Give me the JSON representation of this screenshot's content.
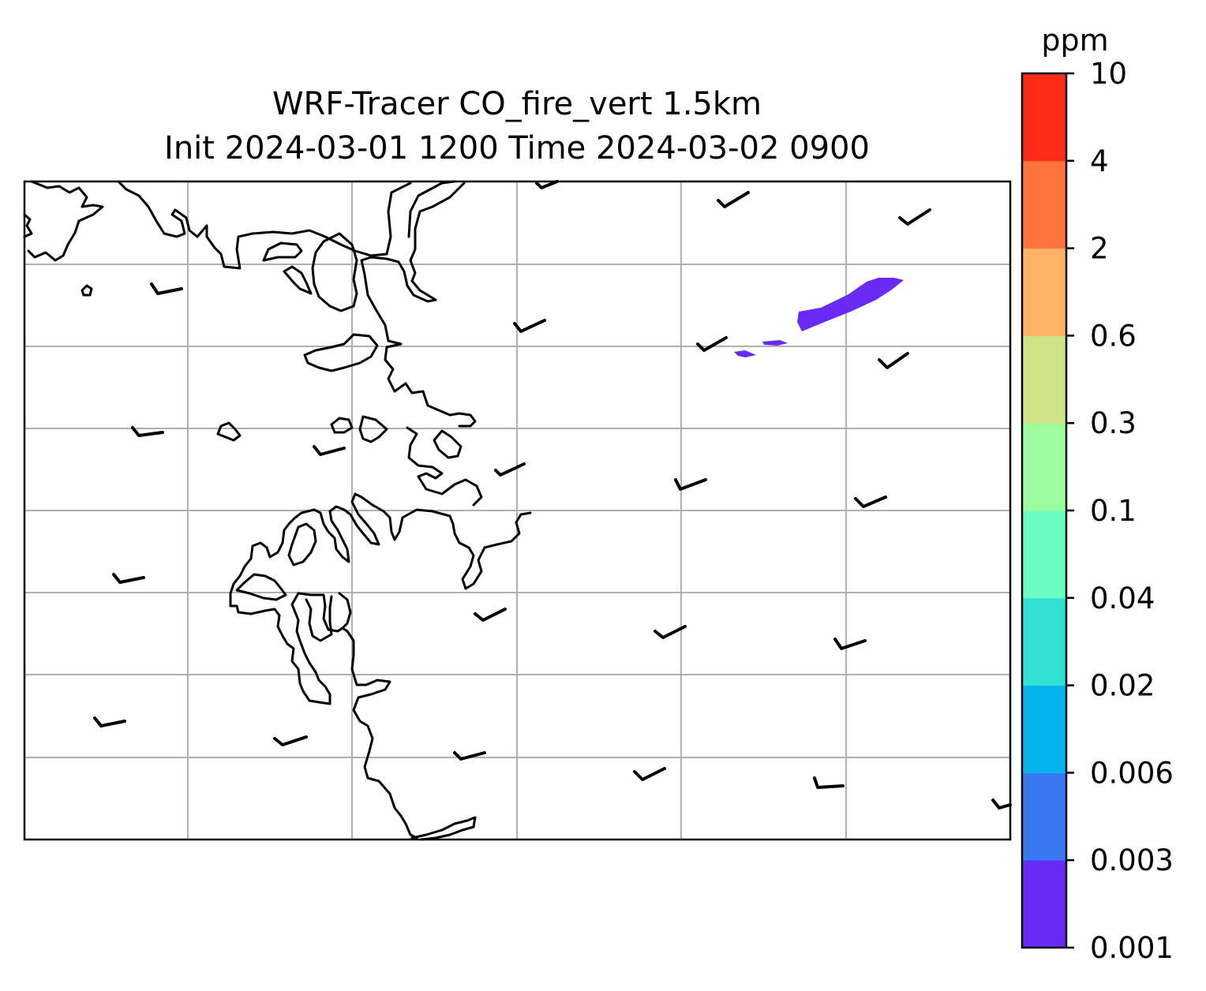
{
  "title": {
    "line1": "WRF-Tracer CO_fire_vert 1.5km",
    "line2": "Init 2024-03-01 1200 Time 2024-03-02 0900"
  },
  "colorbar": {
    "unit": "ppm",
    "levels": [
      "0.001",
      "0.003",
      "0.006",
      "0.02",
      "0.04",
      "0.1",
      "0.3",
      "0.6",
      "2",
      "4",
      "10"
    ],
    "colors": [
      "#6a2af5",
      "#3a78f2",
      "#05b3ed",
      "#33e0d4",
      "#6afcc0",
      "#9efca0",
      "#d1e388",
      "#fdb365",
      "#fe743c",
      "#fd2b17"
    ]
  },
  "map": {
    "gridlines": true,
    "gridline_color": "#b0b0b0",
    "coastline_color": "#000000",
    "plume_color": "#6a2af5",
    "wind_barbs": "calm to light winds, half-barbs only"
  }
}
